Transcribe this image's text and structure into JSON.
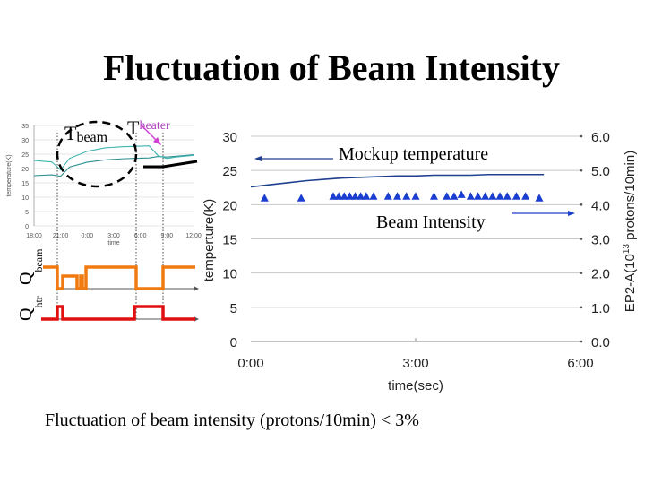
{
  "title": "Fluctuation of Beam Intensity",
  "caption": "Fluctuation of beam intensity (protons/10min) < 3%",
  "labels": {
    "t_beam_base": "T",
    "t_beam_sub": "beam",
    "t_heater_base": "T",
    "t_heater_sub": "heater",
    "q_beam_base": "Q",
    "q_beam_sub": "beam",
    "q_heater_base": "Q",
    "q_heater_sub": "htr"
  },
  "colors": {
    "temperature_line": "#1f3f8f",
    "beam_markers": "#1a3fd0",
    "inset_line": "#2aa0a0",
    "q_beam_line": "#f07a10",
    "q_heater_line": "#e01010",
    "t_heater_arrow": "#d040d0"
  },
  "chart_data": [
    {
      "type": "line",
      "title": "",
      "xlabel": "time(sec)",
      "ylabel": "temperture(K)",
      "y2label": "EP2-A(10^13 protons/10min)",
      "x_ticks": [
        "0:00",
        "3:00",
        "6:00"
      ],
      "y_ticks": [
        "0",
        "5",
        "10",
        "15",
        "20",
        "25",
        "30"
      ],
      "y2_ticks": [
        "0.0",
        "1.0",
        "2.0",
        "3.0",
        "4.0",
        "5.0",
        "6.0"
      ],
      "xlim": [
        0,
        360
      ],
      "ylim": [
        0,
        30
      ],
      "y2lim": [
        0,
        6
      ],
      "grid": true,
      "annotations": [
        "Mockup temperature",
        "Beam Intensity"
      ],
      "series": [
        {
          "axis": "left",
          "marker": "line",
          "x": [
            0,
            20,
            40,
            60,
            80,
            100,
            120,
            140,
            160,
            180,
            200,
            220,
            240,
            260,
            280,
            300,
            320
          ],
          "values": [
            22.6,
            22.9,
            23.2,
            23.5,
            23.7,
            23.9,
            24.0,
            24.1,
            24.2,
            24.2,
            24.3,
            24.3,
            24.3,
            24.4,
            24.4,
            24.4,
            24.4
          ]
        },
        {
          "axis": "right",
          "marker": "triangle",
          "x": [
            15,
            55,
            90,
            96,
            102,
            108,
            114,
            120,
            126,
            134,
            150,
            160,
            170,
            180,
            200,
            214,
            222,
            230,
            240,
            248,
            256,
            264,
            272,
            280,
            290,
            300,
            315
          ],
          "values": [
            4.2,
            4.2,
            4.25,
            4.25,
            4.25,
            4.25,
            4.25,
            4.25,
            4.25,
            4.25,
            4.25,
            4.25,
            4.25,
            4.25,
            4.25,
            4.25,
            4.25,
            4.3,
            4.25,
            4.25,
            4.25,
            4.25,
            4.25,
            4.25,
            4.25,
            4.25,
            4.2
          ]
        }
      ]
    },
    {
      "type": "line",
      "title": "",
      "xlabel": "time",
      "ylabel": "temperature(K)",
      "x_ticks": [
        "18:00",
        "21:00",
        "0:00",
        "3:00",
        "6:00",
        "9:00",
        "12:00"
      ],
      "y_ticks": [
        "0",
        "5",
        "10",
        "15",
        "20",
        "25",
        "30",
        "35"
      ],
      "ylim": [
        0,
        35
      ],
      "grid": true,
      "series": [
        {
          "marker": "line",
          "x": [
            0,
            2,
            3,
            4,
            6,
            8,
            10,
            12,
            13,
            14,
            15,
            17,
            18
          ],
          "values": [
            17.5,
            17.8,
            17.3,
            20.5,
            22.2,
            23.0,
            23.4,
            23.6,
            23.7,
            24.2,
            24.0,
            24.5,
            24.8
          ]
        },
        {
          "marker": "line",
          "x": [
            0,
            2,
            3,
            4,
            6,
            8,
            10,
            12,
            13,
            14,
            15,
            16,
            18
          ],
          "values": [
            22.8,
            22.3,
            19.5,
            23.5,
            26.0,
            27.2,
            27.6,
            27.8,
            27.9,
            24.5,
            23.5,
            24.0,
            24.6
          ]
        }
      ]
    }
  ]
}
